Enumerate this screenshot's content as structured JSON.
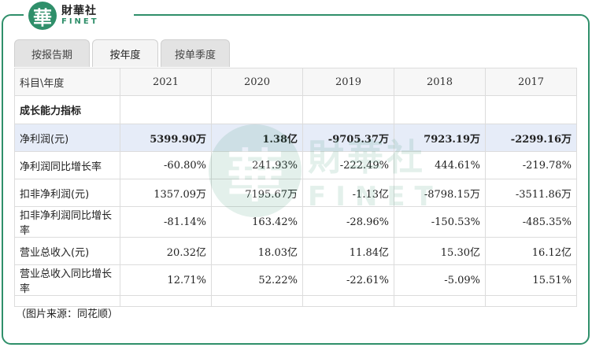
{
  "brand": {
    "badge_char": "華",
    "name_cn": "財華社",
    "name_en": "FINET",
    "color": "#2f8f6a"
  },
  "tabs": [
    {
      "label": "按报告期"
    },
    {
      "label": "按年度",
      "selected": true
    },
    {
      "label": "按单季度"
    }
  ],
  "table": {
    "corner_header": "科目\\年度",
    "years": [
      "2021",
      "2020",
      "2019",
      "2018",
      "2017"
    ],
    "section_title": "成长能力指标",
    "rows": [
      {
        "label": "净利润(元)",
        "values": [
          "5399.90万",
          "1.38亿",
          "-9705.37万",
          "7923.19万",
          "-2299.16万"
        ]
      },
      {
        "label": "净利润同比增长率",
        "values": [
          "-60.80%",
          "241.93%",
          "-222.49%",
          "444.61%",
          "-219.78%"
        ]
      },
      {
        "label": "扣非净利润(元)",
        "values": [
          "1357.09万",
          "7195.67万",
          "-1.13亿",
          "-8798.15万",
          "-3511.86万"
        ]
      },
      {
        "label": "扣非净利润同比增长率",
        "values": [
          "-81.14%",
          "163.42%",
          "-28.96%",
          "-150.53%",
          "-485.35%"
        ]
      },
      {
        "label": "营业总收入(元)",
        "values": [
          "20.32亿",
          "18.03亿",
          "11.84亿",
          "15.30亿",
          "16.12亿"
        ]
      },
      {
        "label": "营业总收入同比增长率",
        "values": [
          "12.71%",
          "52.22%",
          "-22.61%",
          "-5.09%",
          "15.51%"
        ]
      }
    ]
  },
  "source_note": "（图片来源：同花顺）",
  "highlight_color": "#e6ecf8"
}
